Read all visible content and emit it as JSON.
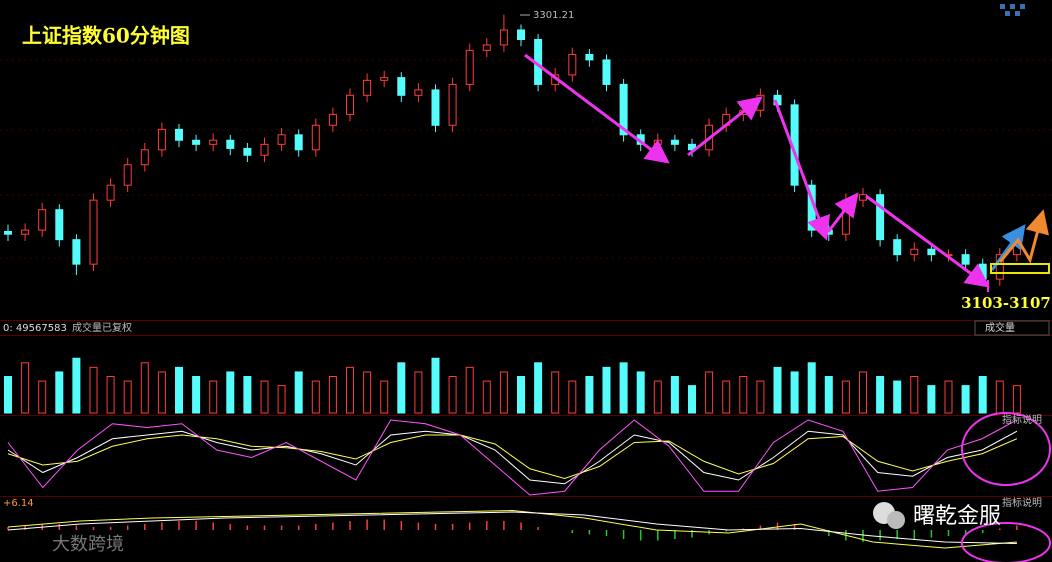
{
  "chart_data": [
    {
      "type": "candlestick",
      "title": "上证指数60分钟图",
      "annotation": "3103-3107",
      "up_color": "#ff3b3b",
      "down_color": "#54fcfc",
      "ylim": [
        3077,
        3312
      ],
      "open": [
        3142,
        3140,
        3143,
        3158,
        3136,
        3118,
        3165,
        3176,
        3191,
        3202,
        3217,
        3209,
        3206,
        3209,
        3203,
        3198,
        3206,
        3213,
        3202,
        3220,
        3228,
        3242,
        3253,
        3255,
        3242,
        3246,
        3220,
        3250,
        3275,
        3279,
        3290,
        3283,
        3250,
        3257,
        3272,
        3268,
        3250,
        3213,
        3206,
        3209,
        3206,
        3202,
        3220,
        3228,
        3231,
        3242,
        3235,
        3176,
        3143,
        3140,
        3165,
        3169,
        3136,
        3125,
        3129,
        3125,
        3125,
        3118,
        3107,
        3125
      ],
      "high": [
        3147,
        3148,
        3163,
        3162,
        3140,
        3170,
        3181,
        3196,
        3207,
        3222,
        3221,
        3213,
        3214,
        3213,
        3207,
        3211,
        3218,
        3217,
        3225,
        3233,
        3247,
        3258,
        3260,
        3259,
        3251,
        3250,
        3255,
        3280,
        3284,
        3301.21,
        3294,
        3287,
        3262,
        3277,
        3276,
        3272,
        3254,
        3217,
        3214,
        3213,
        3210,
        3225,
        3233,
        3236,
        3247,
        3246,
        3239,
        3180,
        3147,
        3170,
        3174,
        3173,
        3140,
        3134,
        3133,
        3129,
        3129,
        3122,
        3130,
        3141
      ],
      "low": [
        3135,
        3135,
        3138,
        3131,
        3110,
        3113,
        3160,
        3171,
        3186,
        3197,
        3204,
        3201,
        3201,
        3198,
        3193,
        3193,
        3201,
        3197,
        3197,
        3215,
        3223,
        3237,
        3248,
        3237,
        3237,
        3215,
        3215,
        3245,
        3270,
        3274,
        3278,
        3245,
        3245,
        3252,
        3263,
        3245,
        3208,
        3201,
        3201,
        3201,
        3197,
        3197,
        3215,
        3223,
        3226,
        3230,
        3171,
        3138,
        3135,
        3135,
        3160,
        3131,
        3120,
        3120,
        3120,
        3120,
        3113,
        3103,
        3102,
        3120
      ],
      "close": [
        3140,
        3143,
        3158,
        3136,
        3118,
        3165,
        3176,
        3191,
        3202,
        3217,
        3209,
        3206,
        3209,
        3203,
        3198,
        3206,
        3213,
        3202,
        3220,
        3228,
        3242,
        3253,
        3255,
        3242,
        3246,
        3220,
        3250,
        3275,
        3279,
        3290,
        3283,
        3250,
        3257,
        3272,
        3268,
        3250,
        3213,
        3206,
        3209,
        3206,
        3202,
        3220,
        3228,
        3231,
        3242,
        3235,
        3176,
        3143,
        3140,
        3165,
        3169,
        3136,
        3125,
        3129,
        3125,
        3125,
        3118,
        3107,
        3125,
        3136
      ]
    },
    {
      "type": "bar",
      "title": "0: 49567583",
      "subtitle": "成交量已复权",
      "selector": "成交量",
      "ylim": [
        0,
        80
      ],
      "values": [
        40,
        55,
        35,
        45,
        60,
        50,
        40,
        35,
        55,
        45,
        50,
        40,
        35,
        45,
        40,
        35,
        30,
        45,
        35,
        40,
        50,
        45,
        35,
        55,
        45,
        60,
        40,
        50,
        35,
        45,
        40,
        55,
        45,
        35,
        40,
        50,
        55,
        45,
        35,
        40,
        30,
        45,
        35,
        40,
        35,
        50,
        45,
        55,
        40,
        35,
        45,
        40,
        35,
        40,
        30,
        35,
        30,
        40,
        35,
        30
      ]
    },
    {
      "type": "line",
      "title": "指标说明",
      "ylim": [
        0,
        100
      ],
      "series": [
        {
          "color": "#ffffff",
          "values": [
            60,
            30,
            50,
            75,
            80,
            85,
            70,
            60,
            65,
            55,
            40,
            80,
            85,
            80,
            60,
            20,
            15,
            45,
            80,
            70,
            30,
            20,
            50,
            85,
            80,
            30,
            25,
            50,
            60,
            85
          ]
        },
        {
          "color": "#ffff55",
          "values": [
            55,
            40,
            45,
            65,
            75,
            80,
            75,
            65,
            63,
            58,
            48,
            70,
            80,
            80,
            68,
            35,
            22,
            38,
            70,
            72,
            45,
            28,
            42,
            75,
            78,
            45,
            32,
            45,
            55,
            75
          ]
        },
        {
          "color": "#ff55ff",
          "values": [
            70,
            10,
            60,
            95,
            90,
            95,
            60,
            50,
            70,
            45,
            20,
            100,
            95,
            80,
            40,
            0,
            5,
            60,
            100,
            65,
            5,
            5,
            70,
            100,
            85,
            5,
            10,
            60,
            75,
            100
          ]
        }
      ]
    },
    {
      "type": "macd",
      "title": "+6.14",
      "subtitle": "指标说明",
      "ylim": [
        -10,
        10
      ],
      "up_color": "#ff3b3b",
      "down_color": "#22cc22",
      "values": [
        1,
        1.5,
        2,
        2,
        1.5,
        1,
        1,
        1.5,
        2,
        2.5,
        3,
        3,
        2.5,
        2,
        1.5,
        1.5,
        1.5,
        1.5,
        2,
        2.5,
        3,
        3.5,
        3.5,
        3,
        2.5,
        2,
        2,
        2.5,
        3,
        3,
        2.5,
        1,
        0,
        -1,
        -1.5,
        -2,
        -3,
        -3.5,
        -3.5,
        -3,
        -2.5,
        -1.5,
        -0.5,
        0.5,
        1.5,
        2.5,
        2,
        0,
        -2,
        -3.5,
        -4,
        -3.5,
        -3,
        -3,
        -2.5,
        -2,
        -1.5,
        -1,
        0.5,
        1.5
      ],
      "series": [
        {
          "color": "#ffff55",
          "values": [
            1,
            3,
            4,
            4.5,
            5,
            5.5,
            6,
            6.5,
            4,
            0,
            -1,
            2,
            -4,
            -6,
            -4
          ]
        },
        {
          "color": "#ffffff",
          "values": [
            0,
            2,
            3,
            4,
            4.5,
            5,
            5.5,
            6,
            5,
            2,
            0,
            0.5,
            -2,
            -4,
            -4.5
          ]
        }
      ]
    }
  ],
  "brand": "曙乾金服",
  "watermark": "大数跨境"
}
